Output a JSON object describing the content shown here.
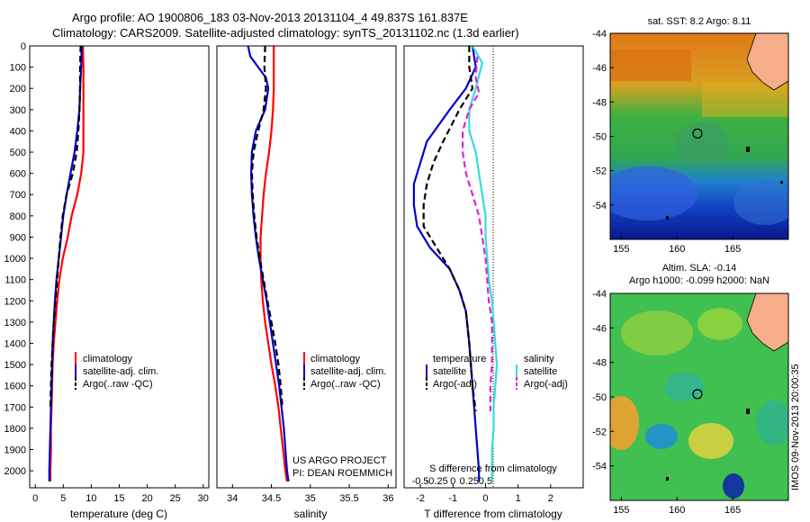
{
  "header": {
    "line1": "Argo profile: AO 1900806_183 03-Nov-2013 20131104_4 49.837S 161.837E",
    "line2": "Climatology: CARS2009. Satellite-adjusted climatology: synTS_20131102.nc (1.3d earlier)"
  },
  "colors": {
    "climatology": "#ff0000",
    "satellite": "#0000cc",
    "argo": "#000000",
    "satellite_salinity": "#33dddd",
    "argo_salinity": "#dd22dd"
  },
  "chart_data": [
    {
      "type": "line",
      "name": "temperature-profile",
      "xlabel": "temperature (deg C)",
      "ylabel": "",
      "xlim": [
        -1,
        31
      ],
      "ylim": [
        2080,
        0
      ],
      "xticks": [
        0,
        5,
        10,
        15,
        20,
        25,
        30
      ],
      "yticks": [
        0,
        100,
        200,
        300,
        400,
        500,
        600,
        700,
        800,
        900,
        1000,
        1100,
        1200,
        1300,
        1400,
        1500,
        1600,
        1700,
        1800,
        1900,
        2000
      ],
      "legend": [
        "climatology",
        "satellite-adj. clim.",
        "Argo(..raw -QC)"
      ],
      "series": [
        {
          "name": "climatology",
          "color": "#ff0000",
          "dash": false,
          "points": [
            [
              8.5,
              0
            ],
            [
              8.6,
              100
            ],
            [
              8.6,
              200
            ],
            [
              8.6,
              300
            ],
            [
              8.6,
              400
            ],
            [
              8.6,
              500
            ],
            [
              8.2,
              600
            ],
            [
              7.5,
              700
            ],
            [
              6.5,
              800
            ],
            [
              5.8,
              900
            ],
            [
              4.9,
              1000
            ],
            [
              4.3,
              1100
            ],
            [
              3.9,
              1200
            ],
            [
              3.6,
              1300
            ],
            [
              3.3,
              1400
            ],
            [
              3.1,
              1500
            ],
            [
              3.0,
              1600
            ],
            [
              2.9,
              1700
            ],
            [
              2.8,
              1800
            ],
            [
              2.8,
              1900
            ],
            [
              2.7,
              2000
            ],
            [
              2.7,
              2050
            ]
          ]
        },
        {
          "name": "satellite-adj. clim.",
          "color": "#0000cc",
          "dash": false,
          "points": [
            [
              8.3,
              0
            ],
            [
              8.2,
              100
            ],
            [
              8.0,
              200
            ],
            [
              7.9,
              300
            ],
            [
              7.5,
              400
            ],
            [
              7.0,
              500
            ],
            [
              6.3,
              600
            ],
            [
              5.6,
              700
            ],
            [
              5.0,
              800
            ],
            [
              4.6,
              900
            ],
            [
              4.2,
              1000
            ],
            [
              3.8,
              1100
            ],
            [
              3.5,
              1200
            ],
            [
              3.3,
              1300
            ],
            [
              3.1,
              1400
            ],
            [
              3.0,
              1500
            ],
            [
              2.9,
              1600
            ],
            [
              2.8,
              1700
            ],
            [
              2.7,
              1800
            ],
            [
              2.6,
              1900
            ],
            [
              2.5,
              2000
            ],
            [
              2.5,
              2050
            ]
          ]
        },
        {
          "name": "Argo(..raw -QC)",
          "color": "#000000",
          "dash": true,
          "points": [
            [
              8.1,
              0
            ],
            [
              8.0,
              100
            ],
            [
              8.0,
              200
            ],
            [
              7.9,
              300
            ],
            [
              7.7,
              400
            ],
            [
              7.4,
              500
            ],
            [
              6.7,
              600
            ],
            [
              5.6,
              700
            ],
            [
              4.9,
              800
            ],
            [
              4.5,
              900
            ],
            [
              4.2,
              1000
            ],
            [
              3.9,
              1100
            ],
            [
              3.6,
              1200
            ],
            [
              3.3,
              1300
            ],
            [
              3.1,
              1400
            ],
            [
              2.9,
              1500
            ],
            [
              2.8,
              1600
            ],
            [
              2.7,
              1700
            ]
          ]
        }
      ]
    },
    {
      "type": "line",
      "name": "salinity-profile",
      "xlabel": "salinity",
      "xlim": [
        33.8,
        36.1
      ],
      "ylim": [
        2080,
        0
      ],
      "xticks": [
        34,
        34.5,
        35,
        35.5,
        36
      ],
      "legend": [
        "climatology",
        "satellite-adj. clim.",
        "Argo(..raw -QC)"
      ],
      "annotation": [
        "US ARGO PROJECT",
        "PI: DEAN ROEMMICH"
      ],
      "series": [
        {
          "name": "climatology",
          "color": "#ff0000",
          "dash": false,
          "points": [
            [
              34.53,
              0
            ],
            [
              34.53,
              100
            ],
            [
              34.53,
              200
            ],
            [
              34.52,
              300
            ],
            [
              34.5,
              400
            ],
            [
              34.47,
              500
            ],
            [
              34.43,
              600
            ],
            [
              34.4,
              700
            ],
            [
              34.38,
              800
            ],
            [
              34.36,
              900
            ],
            [
              34.36,
              1000
            ],
            [
              34.37,
              1100
            ],
            [
              34.39,
              1200
            ],
            [
              34.42,
              1300
            ],
            [
              34.46,
              1400
            ],
            [
              34.5,
              1500
            ],
            [
              34.55,
              1600
            ],
            [
              34.59,
              1700
            ],
            [
              34.62,
              1800
            ],
            [
              34.65,
              1900
            ],
            [
              34.68,
              2000
            ],
            [
              34.7,
              2050
            ]
          ]
        },
        {
          "name": "satellite-adj. clim.",
          "color": "#0000cc",
          "dash": false,
          "points": [
            [
              34.2,
              0
            ],
            [
              34.23,
              50
            ],
            [
              34.33,
              100
            ],
            [
              34.43,
              150
            ],
            [
              34.46,
              200
            ],
            [
              34.42,
              300
            ],
            [
              34.3,
              400
            ],
            [
              34.25,
              500
            ],
            [
              34.24,
              600
            ],
            [
              34.25,
              700
            ],
            [
              34.27,
              800
            ],
            [
              34.3,
              900
            ],
            [
              34.34,
              1000
            ],
            [
              34.39,
              1100
            ],
            [
              34.44,
              1200
            ],
            [
              34.48,
              1300
            ],
            [
              34.52,
              1400
            ],
            [
              34.56,
              1500
            ],
            [
              34.6,
              1600
            ],
            [
              34.63,
              1700
            ],
            [
              34.66,
              1800
            ],
            [
              34.68,
              1900
            ],
            [
              34.7,
              2000
            ],
            [
              34.72,
              2050
            ]
          ]
        },
        {
          "name": "Argo(..raw -QC)",
          "color": "#000000",
          "dash": true,
          "points": [
            [
              34.42,
              0
            ],
            [
              34.41,
              100
            ],
            [
              34.43,
              200
            ],
            [
              34.4,
              300
            ],
            [
              34.33,
              400
            ],
            [
              34.27,
              500
            ],
            [
              34.25,
              600
            ],
            [
              34.26,
              700
            ],
            [
              34.28,
              800
            ],
            [
              34.31,
              900
            ],
            [
              34.35,
              1000
            ],
            [
              34.4,
              1100
            ],
            [
              34.45,
              1200
            ],
            [
              34.5,
              1300
            ],
            [
              34.55,
              1400
            ],
            [
              34.59,
              1500
            ],
            [
              34.62,
              1600
            ],
            [
              34.64,
              1700
            ]
          ]
        }
      ]
    },
    {
      "type": "line",
      "name": "difference-profile",
      "xlabel": "T difference from climatology",
      "toplabel": "S difference from climatology",
      "xlim": [
        -2.5,
        3.0
      ],
      "ylim": [
        2080,
        0
      ],
      "xticks": [
        -2,
        -1,
        0,
        1,
        2
      ],
      "stick_labels": [
        "-0.5",
        "-0.25",
        "0",
        "0.25",
        "0.5"
      ],
      "legend_temperature_title": "temperature",
      "legend_temperature": [
        "satellite",
        "Argo(-adj)"
      ],
      "legend_salinity_title": "salinity",
      "legend_salinity": [
        "satellite",
        "Argo(-adj)"
      ],
      "series": [
        {
          "name": "temperature satellite",
          "color": "#0000cc",
          "dash": false,
          "points": [
            [
              -0.4,
              0
            ],
            [
              -0.3,
              100
            ],
            [
              -0.6,
              200
            ],
            [
              -1.1,
              300
            ],
            [
              -1.8,
              450
            ],
            [
              -2.0,
              550
            ],
            [
              -2.2,
              650
            ],
            [
              -2.2,
              750
            ],
            [
              -2.1,
              850
            ],
            [
              -1.7,
              950
            ],
            [
              -1.1,
              1050
            ],
            [
              -0.8,
              1150
            ],
            [
              -0.6,
              1250
            ],
            [
              -0.5,
              1400
            ],
            [
              -0.4,
              1600
            ],
            [
              -0.3,
              1800
            ],
            [
              -0.2,
              2000
            ],
            [
              -0.2,
              2050
            ]
          ]
        },
        {
          "name": "temperature Argo(-adj)",
          "color": "#000000",
          "dash": true,
          "points": [
            [
              -0.5,
              0
            ],
            [
              -0.5,
              100
            ],
            [
              -0.4,
              200
            ],
            [
              -0.8,
              300
            ],
            [
              -1.3,
              450
            ],
            [
              -1.6,
              550
            ],
            [
              -1.8,
              650
            ],
            [
              -1.9,
              750
            ],
            [
              -1.9,
              850
            ],
            [
              -1.5,
              950
            ],
            [
              -1.1,
              1050
            ],
            [
              -0.8,
              1150
            ],
            [
              -0.6,
              1250
            ],
            [
              -0.5,
              1400
            ],
            [
              -0.4,
              1600
            ],
            [
              -0.3,
              1720
            ]
          ]
        },
        {
          "name": "salinity satellite",
          "color": "#33dddd",
          "dash": false,
          "points": [
            [
              -0.4,
              0
            ],
            [
              -0.1,
              80
            ],
            [
              -0.3,
              200
            ],
            [
              -0.5,
              300
            ],
            [
              -0.5,
              400
            ],
            [
              -0.3,
              500
            ],
            [
              -0.2,
              600
            ],
            [
              -0.1,
              700
            ],
            [
              0.0,
              800
            ],
            [
              0.0,
              900
            ],
            [
              0.05,
              1000
            ],
            [
              0.1,
              1100
            ],
            [
              0.2,
              1200
            ],
            [
              0.25,
              1300
            ],
            [
              0.3,
              1400
            ],
            [
              0.35,
              1500
            ],
            [
              0.3,
              1600
            ],
            [
              0.25,
              1700
            ],
            [
              0.25,
              1800
            ],
            [
              0.2,
              1900
            ],
            [
              0.2,
              2000
            ],
            [
              0.2,
              2050
            ]
          ]
        },
        {
          "name": "salinity Argo(-adj)",
          "color": "#dd22dd",
          "dash": true,
          "points": [
            [
              -0.25,
              50
            ],
            [
              -0.3,
              150
            ],
            [
              -0.2,
              220
            ],
            [
              -0.5,
              300
            ],
            [
              -0.7,
              400
            ],
            [
              -0.7,
              500
            ],
            [
              -0.6,
              600
            ],
            [
              -0.4,
              700
            ],
            [
              -0.2,
              800
            ],
            [
              -0.1,
              900
            ],
            [
              0.0,
              1000
            ],
            [
              0.05,
              1100
            ],
            [
              0.1,
              1200
            ],
            [
              0.2,
              1300
            ],
            [
              0.2,
              1400
            ],
            [
              0.2,
              1500
            ],
            [
              0.15,
              1600
            ],
            [
              0.15,
              1720
            ]
          ]
        }
      ]
    },
    {
      "type": "heatmap",
      "name": "sst-map",
      "title": "sat. SST: 8.2 Argo: 8.11",
      "xlim": [
        154,
        170
      ],
      "ylim": [
        -56,
        -44
      ],
      "xticks": [
        155,
        160,
        165
      ],
      "yticks": [
        -44,
        -46,
        -48,
        -50,
        -52,
        -54
      ],
      "marker": [
        161.837,
        -49.837
      ]
    },
    {
      "type": "heatmap",
      "name": "sla-map",
      "title": "Altim. SLA: -0.14",
      "subtitle": "Argo h1000: -0.099 h2000: NaN",
      "xlim": [
        154,
        170
      ],
      "ylim": [
        -56,
        -44
      ],
      "xticks": [
        155,
        160,
        165
      ],
      "yticks": [
        -44,
        -46,
        -48,
        -50,
        -52,
        -54
      ],
      "marker": [
        161.837,
        -49.837
      ]
    }
  ],
  "stamp": "IMOS 09-Nov-2013 20:00:35"
}
